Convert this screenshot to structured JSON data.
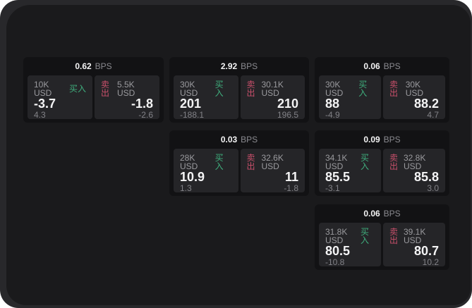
{
  "labels": {
    "bps": "BPS",
    "buy": "买入",
    "sell": "卖出"
  },
  "colors": {
    "buy_green": "#3fae7d",
    "sell_red": "#c9506b",
    "canvas_background": "#28282b",
    "window_background": "#1a1a1c",
    "card_background": "#121214",
    "panel_background": "#252528"
  },
  "cards": [
    {
      "bps_value": "0.62",
      "buy": {
        "size": "10K USD",
        "value": "-3.7",
        "sub": "4.3"
      },
      "sell": {
        "size": "5.5K USD",
        "value": "-1.8",
        "sub": "-2.6"
      }
    },
    {
      "bps_value": "2.92",
      "buy": {
        "size": "30K USD",
        "value": "201",
        "sub": "-188.1"
      },
      "sell": {
        "size": "30.1K USD",
        "value": "210",
        "sub": "196.5"
      }
    },
    {
      "bps_value": "0.06",
      "buy": {
        "size": "30K USD",
        "value": "88",
        "sub": "-4.9"
      },
      "sell": {
        "size": "30K USD",
        "value": "88.2",
        "sub": "4.7"
      }
    },
    {
      "bps_value": "0.03",
      "buy": {
        "size": "28K USD",
        "value": "10.9",
        "sub": "1.3"
      },
      "sell": {
        "size": "32.6K USD",
        "value": "11",
        "sub": "-1.8"
      }
    },
    {
      "bps_value": "0.09",
      "buy": {
        "size": "34.1K USD",
        "value": "85.5",
        "sub": "-3.1"
      },
      "sell": {
        "size": "32.8K USD",
        "value": "85.8",
        "sub": "3.0"
      }
    },
    {
      "bps_value": "0.06",
      "buy": {
        "size": "31.8K USD",
        "value": "80.5",
        "sub": "-10.8"
      },
      "sell": {
        "size": "39.1K USD",
        "value": "80.7",
        "sub": "10.2"
      }
    }
  ]
}
